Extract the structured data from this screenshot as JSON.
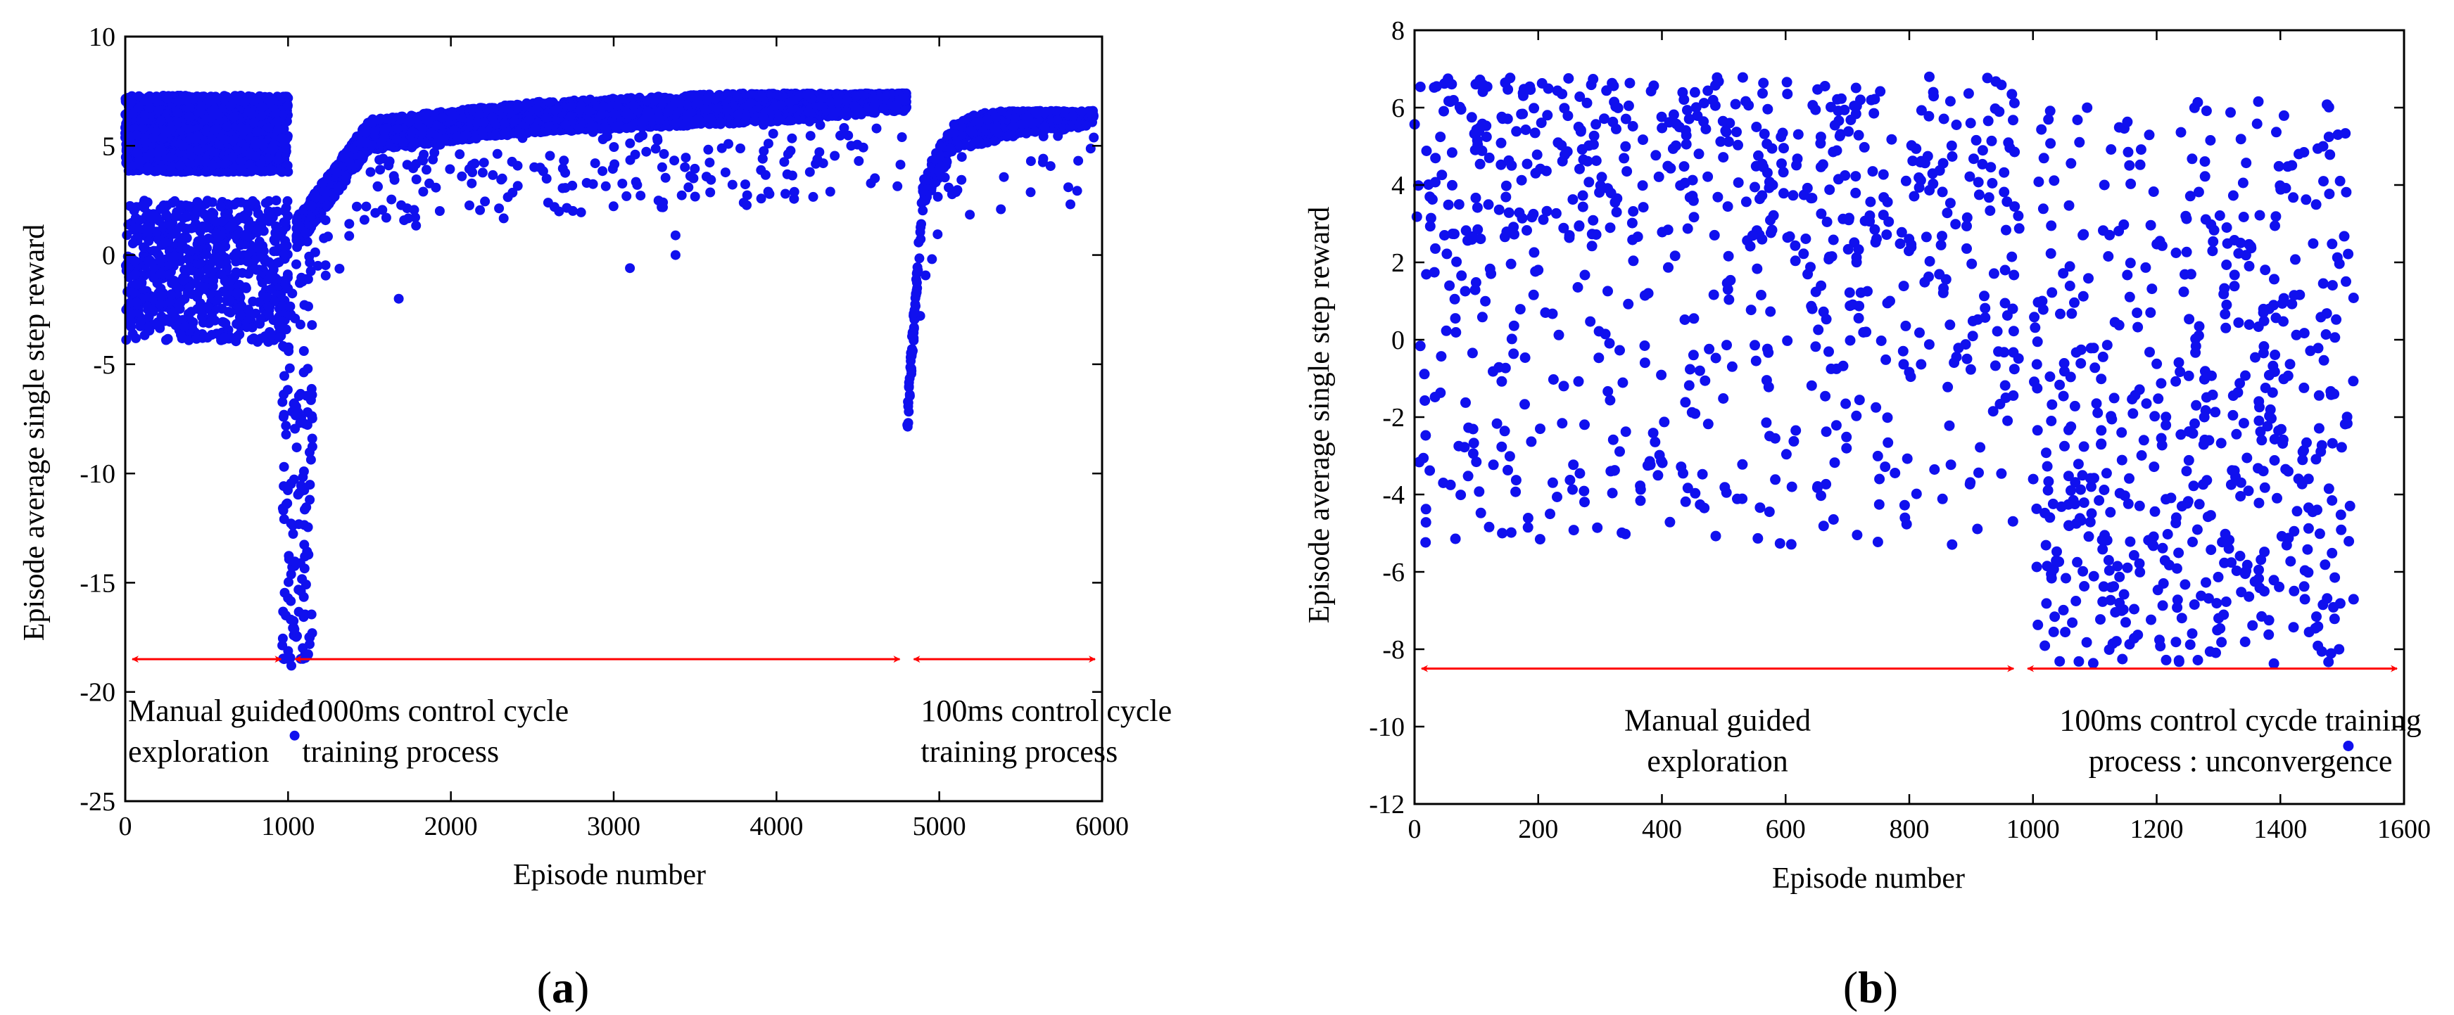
{
  "figure": {
    "panel_labels": [
      "a",
      "b"
    ],
    "colors": {
      "points": "#1010ee",
      "arrows": "#ff0000",
      "axes": "#000000"
    }
  },
  "chart_data": [
    {
      "panel": "a",
      "type": "scatter",
      "title": "",
      "xlabel": "Episode number",
      "ylabel": "Episode average single step reward",
      "xlim": [
        0,
        6000
      ],
      "ylim": [
        -25,
        10
      ],
      "xticks": [
        0,
        1000,
        2000,
        3000,
        4000,
        5000,
        6000
      ],
      "yticks": [
        -25,
        -20,
        -15,
        -10,
        -5,
        0,
        5,
        10
      ],
      "grid": false,
      "phases": [
        {
          "x_start": 0,
          "x_end": 1000,
          "label_lines": [
            "Manual guided",
            "exploration"
          ]
        },
        {
          "x_start": 1000,
          "x_end": 4800,
          "label_lines": [
            "1000ms control cycle",
            "training process"
          ]
        },
        {
          "x_start": 4800,
          "x_end": 6000,
          "label_lines": [
            "100ms control cycle",
            "training process"
          ]
        }
      ],
      "arrow_y": -18.5,
      "series": [
        {
          "name": "manual guided exploration",
          "x_range": [
            0,
            1000
          ],
          "clusters": [
            {
              "share": 0.72,
              "y_range": [
                3.8,
                7.3
              ]
            },
            {
              "share": 0.28,
              "y_range": [
                -4.0,
                2.5
              ]
            }
          ]
        },
        {
          "name": "transition dip",
          "x_range": [
            960,
            1150
          ],
          "y_range": [
            -18.5,
            0
          ]
        },
        {
          "name": "1000ms control cycle training",
          "x_range": [
            1050,
            4800
          ],
          "y_trend": [
            [
              1050,
              1.0
            ],
            [
              1500,
              5.5
            ],
            [
              2500,
              6.3
            ],
            [
              4000,
              6.8
            ],
            [
              4800,
              7.3
            ]
          ],
          "y_max": 7.4
        },
        {
          "name": "100ms control cycle training",
          "x_range": [
            4800,
            5950
          ],
          "y_trend": [
            [
              4800,
              -8.0
            ],
            [
              4900,
              3.0
            ],
            [
              5100,
              5.5
            ],
            [
              5500,
              6.2
            ],
            [
              5950,
              6.6
            ]
          ],
          "y_max": 6.6
        }
      ],
      "outliers": [
        {
          "x": 1020,
          "y": -18.8
        },
        {
          "x": 1040,
          "y": -22.0
        },
        {
          "x": 1680,
          "y": -2.0
        },
        {
          "x": 3100,
          "y": -0.6
        },
        {
          "x": 3380,
          "y": 0.9
        },
        {
          "x": 3380,
          "y": 0.0
        }
      ]
    },
    {
      "panel": "b",
      "type": "scatter",
      "title": "",
      "xlabel": "Episode number",
      "ylabel": "Episode average single step reward",
      "xlim": [
        0,
        1600
      ],
      "ylim": [
        -12,
        8
      ],
      "xticks": [
        0,
        200,
        400,
        600,
        800,
        1000,
        1200,
        1400,
        1600
      ],
      "yticks": [
        -12,
        -10,
        -8,
        -6,
        -4,
        -2,
        0,
        2,
        4,
        6,
        8
      ],
      "grid": false,
      "phases": [
        {
          "x_start": 0,
          "x_end": 980,
          "label_lines": [
            "Manual guided",
            "exploration"
          ]
        },
        {
          "x_start": 980,
          "x_end": 1600,
          "label_lines": [
            "100ms control cycde training",
            "process : unconvergence"
          ]
        }
      ],
      "arrow_y": -8.5,
      "series": [
        {
          "name": "manual guided exploration",
          "x_range": [
            0,
            980
          ],
          "clusters": [
            {
              "share": 0.55,
              "y_range": [
                2.5,
                6.8
              ]
            },
            {
              "share": 0.45,
              "y_range": [
                -5.3,
                2.5
              ]
            }
          ]
        },
        {
          "name": "100ms control cycle training (unconverged)",
          "x_range": [
            1000,
            1520
          ],
          "clusters": [
            {
              "share": 0.25,
              "y_range": [
                1.0,
                6.2
              ]
            },
            {
              "share": 0.75,
              "y_range": [
                -8.4,
                1.0
              ]
            }
          ]
        }
      ],
      "outliers": [
        {
          "x": 1510,
          "y": -10.5
        }
      ]
    }
  ]
}
